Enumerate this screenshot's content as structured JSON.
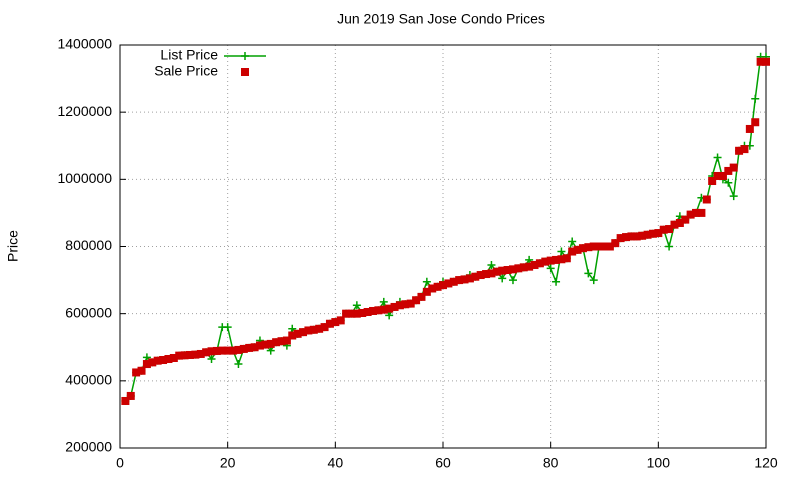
{
  "chart_data": {
    "type": "line",
    "title": "Jun 2019 San Jose Condo Prices",
    "y_label": "Price",
    "x": [
      1,
      2,
      3,
      4,
      5,
      6,
      7,
      8,
      9,
      10,
      11,
      12,
      13,
      14,
      15,
      16,
      17,
      18,
      19,
      20,
      21,
      22,
      23,
      24,
      25,
      26,
      27,
      28,
      29,
      30,
      31,
      32,
      33,
      34,
      35,
      36,
      37,
      38,
      39,
      40,
      41,
      42,
      43,
      44,
      45,
      46,
      47,
      48,
      49,
      50,
      51,
      52,
      53,
      54,
      55,
      56,
      57,
      58,
      59,
      60,
      61,
      62,
      63,
      64,
      65,
      66,
      67,
      68,
      69,
      70,
      71,
      72,
      73,
      74,
      75,
      76,
      77,
      78,
      79,
      80,
      81,
      82,
      83,
      84,
      85,
      86,
      87,
      88,
      89,
      90,
      91,
      92,
      93,
      94,
      95,
      96,
      97,
      98,
      99,
      100,
      101,
      102,
      103,
      104,
      105,
      106,
      107,
      108,
      109,
      110,
      111,
      112,
      113,
      114,
      115,
      116,
      117,
      118,
      119,
      120
    ],
    "series": [
      {
        "name": "List Price",
        "color": "#00a000",
        "style": "linespoints",
        "values": [
          340000,
          355000,
          425000,
          430000,
          470000,
          455000,
          460000,
          462000,
          465000,
          468000,
          475000,
          476000,
          477000,
          478000,
          480000,
          485000,
          465000,
          489000,
          560000,
          560000,
          490000,
          450000,
          495000,
          498000,
          500000,
          520000,
          508000,
          490000,
          515000,
          518000,
          505000,
          555000,
          540000,
          545000,
          550000,
          552000,
          555000,
          560000,
          570000,
          575000,
          580000,
          600000,
          600000,
          625000,
          602000,
          605000,
          608000,
          610000,
          635000,
          595000,
          620000,
          635000,
          628000,
          630000,
          640000,
          650000,
          695000,
          675000,
          680000,
          695000,
          690000,
          695000,
          700000,
          702000,
          715000,
          710000,
          715000,
          718000,
          745000,
          725000,
          705000,
          730000,
          700000,
          735000,
          738000,
          760000,
          745000,
          750000,
          755000,
          735000,
          695000,
          785000,
          765000,
          815000,
          790000,
          795000,
          720000,
          700000,
          800000,
          800000,
          800000,
          810000,
          825000,
          828000,
          830000,
          830000,
          832000,
          835000,
          838000,
          840000,
          850000,
          800000,
          865000,
          890000,
          880000,
          895000,
          900000,
          945000,
          940000,
          1010000,
          1065000,
          1000000,
          990000,
          950000,
          1085000,
          1100000,
          1100000,
          1240000,
          1365000,
          1365000
        ]
      },
      {
        "name": "Sale Price",
        "color": "#cc0000",
        "style": "points",
        "values": [
          340000,
          355000,
          425000,
          430000,
          450000,
          455000,
          460000,
          462000,
          465000,
          468000,
          475000,
          476000,
          477000,
          478000,
          480000,
          485000,
          488000,
          489000,
          490000,
          490000,
          490000,
          492000,
          495000,
          498000,
          500000,
          505000,
          508000,
          510000,
          515000,
          518000,
          520000,
          535000,
          540000,
          545000,
          550000,
          552000,
          555000,
          560000,
          570000,
          575000,
          580000,
          600000,
          600000,
          600000,
          602000,
          605000,
          608000,
          610000,
          612000,
          615000,
          620000,
          625000,
          628000,
          630000,
          640000,
          650000,
          665000,
          675000,
          680000,
          685000,
          690000,
          695000,
          700000,
          702000,
          705000,
          710000,
          715000,
          718000,
          720000,
          725000,
          728000,
          730000,
          732000,
          735000,
          738000,
          740000,
          745000,
          750000,
          755000,
          758000,
          760000,
          762000,
          765000,
          785000,
          790000,
          795000,
          798000,
          800000,
          800000,
          800000,
          800000,
          810000,
          825000,
          828000,
          830000,
          830000,
          832000,
          835000,
          838000,
          840000,
          850000,
          852000,
          865000,
          870000,
          880000,
          895000,
          900000,
          900000,
          940000,
          995000,
          1010000,
          1010000,
          1025000,
          1035000,
          1085000,
          1090000,
          1150000,
          1170000,
          1350000,
          1350000
        ]
      }
    ],
    "xlim": [
      0,
      120
    ],
    "xticks": [
      0,
      20,
      40,
      60,
      80,
      100,
      120
    ],
    "ylim": [
      200000,
      1400000
    ],
    "yticks": [
      200000,
      400000,
      600000,
      800000,
      1000000,
      1200000,
      1400000
    ],
    "grid": true,
    "legend": "top-left"
  }
}
